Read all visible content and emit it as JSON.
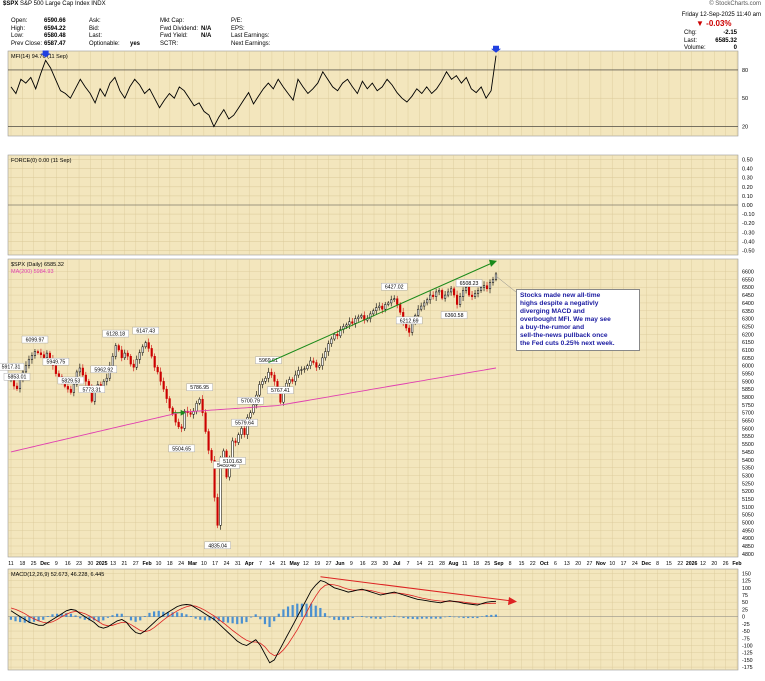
{
  "header": {
    "symbol": "$SPX",
    "name": "S&P 500 Large Cap Index",
    "exchange": "INDX",
    "credit": "© StockCharts.com",
    "date": "Friday 12-Sep-2025 11:40 am",
    "left_fields": [
      {
        "label": "Open:",
        "value": "6590.66"
      },
      {
        "label": "High:",
        "value": "6594.22"
      },
      {
        "label": "Low:",
        "value": "6580.48"
      },
      {
        "label": "Prev Close:",
        "value": "6587.47"
      }
    ],
    "mid_fields": [
      {
        "label": "Ask:",
        "value": ""
      },
      {
        "label": "Bid:",
        "value": ""
      },
      {
        "label": "Last:",
        "value": ""
      },
      {
        "label": "Optionable:",
        "value": "yes"
      }
    ],
    "mid2_fields": [
      {
        "label": "Mkt Cap:",
        "value": ""
      },
      {
        "label": "Fwd Dividend:",
        "value": "N/A"
      },
      {
        "label": "Fwd Yield:",
        "value": "N/A"
      },
      {
        "label": "SCTR:",
        "value": ""
      }
    ],
    "mid3_fields": [
      {
        "label": "P/E:",
        "value": ""
      },
      {
        "label": "EPS:",
        "value": ""
      },
      {
        "label": "Last Earnings:",
        "value": ""
      },
      {
        "label": "Next Earnings:",
        "value": ""
      }
    ],
    "change_pct": "-0.03%",
    "right_fields": [
      {
        "label": "Chg:",
        "value": "-2.15"
      },
      {
        "label": "Last:",
        "value": "6585.32"
      },
      {
        "label": "Volume:",
        "value": "0"
      }
    ],
    "down_color": "#cc0000"
  },
  "annotation": {
    "lines": [
      "Stocks made new all-time",
      "highs despite a negativly",
      "diverging MACD and",
      "overbought MFI. We may see",
      "a buy-the-rumor and",
      "sell-the-news pullback once",
      "the Fed cuts 0.25% next week."
    ],
    "color": "#1a1aa0"
  },
  "colors": {
    "panel_bg": "#f3e6bd",
    "grid": "#d9c898",
    "ma_line": "#e040b0",
    "up": "#000000",
    "down": "#cc0000",
    "trend_price": "#1a8a1a",
    "trend_macd": "#dd2222",
    "marker": "#2040e0",
    "hist": "#4a90d0"
  },
  "chart_data": [
    {
      "type": "line",
      "panel": "mfi",
      "title": "MFI(14) 94.76 (11 Sep)",
      "y_ticks": [
        20,
        50,
        80
      ],
      "ylim": [
        10,
        100
      ],
      "levels": [
        20,
        80
      ],
      "series": [
        {
          "name": "MFI(14)",
          "values": [
            62,
            55,
            70,
            66,
            72,
            60,
            76,
            90,
            82,
            70,
            58,
            55,
            50,
            60,
            70,
            62,
            55,
            45,
            60,
            52,
            66,
            72,
            58,
            50,
            62,
            70,
            64,
            55,
            60,
            50,
            40,
            48,
            55,
            50,
            62,
            58,
            50,
            42,
            45,
            36,
            32,
            20,
            30,
            38,
            28,
            32,
            40,
            48,
            56,
            44,
            52,
            60,
            66,
            60,
            70,
            62,
            55,
            48,
            70,
            62,
            55,
            60,
            66,
            78,
            70,
            62,
            58,
            66,
            70,
            62,
            55,
            68,
            60,
            66,
            58,
            62,
            70,
            64,
            56,
            50,
            46,
            52,
            60,
            55,
            62,
            55,
            60,
            68,
            78,
            70,
            74,
            66,
            72,
            60,
            56,
            62,
            50,
            58,
            95
          ]
        }
      ]
    },
    {
      "type": "line",
      "panel": "force",
      "title": "FORCE(0) 0.00 (11 Sep)",
      "y_ticks": [
        "0.50",
        "0.40",
        "0.30",
        "0.20",
        "0.10",
        "0.00",
        "-0.10",
        "-0.20",
        "-0.30",
        "-0.40",
        "-0.50"
      ],
      "ylim": [
        -0.55,
        0.55
      ],
      "series": [
        {
          "name": "FORCE(0)",
          "values": [
            0
          ]
        }
      ]
    },
    {
      "type": "candlestick",
      "panel": "price",
      "title": "$SPX (Daily) 6585.32",
      "legend": [
        "MA(200) 5984.93"
      ],
      "ylim": [
        4780,
        6680
      ],
      "y_ticks": [
        6600,
        6550,
        6500,
        6450,
        6400,
        6350,
        6300,
        6250,
        6200,
        6150,
        6100,
        6050,
        6000,
        5950,
        5900,
        5850,
        5800,
        5750,
        5700,
        5650,
        5600,
        5550,
        5500,
        5450,
        5400,
        5350,
        5300,
        5250,
        5200,
        5150,
        5100,
        5050,
        5000,
        4950,
        4900,
        4850,
        4800
      ],
      "closes": [
        5917,
        5870,
        5853,
        5910,
        5960,
        6000,
        6040,
        6065,
        6090,
        6082,
        6070,
        6050,
        6080,
        6040,
        6000,
        5949,
        5930,
        5900,
        5868,
        5850,
        5829,
        5881,
        5960,
        5985,
        5940,
        5900,
        5870,
        5773,
        5842,
        5880,
        5870,
        5900,
        5920,
        6000,
        6060,
        6128,
        6100,
        6050,
        6080,
        6060,
        6010,
        5990,
        6040,
        6083,
        6120,
        6147,
        6110,
        6060,
        5990,
        5960,
        5900,
        5850,
        5790,
        5730,
        5690,
        5640,
        5610,
        5600,
        5710,
        5700,
        5690,
        5710,
        5760,
        5786,
        5700,
        5580,
        5460,
        5396,
        5160,
        4982,
        5405,
        5456,
        5290,
        5400,
        5520,
        5510,
        5560,
        5600,
        5560,
        5670,
        5700,
        5750,
        5812,
        5880,
        5900,
        5920,
        5958,
        5940,
        5900,
        5850,
        5767,
        5842,
        5888,
        5912,
        5900,
        5940,
        5970,
        5975,
        5980,
        6000,
        6030,
        6020,
        5990,
        6000,
        6050,
        6090,
        6140,
        6170,
        6200,
        6190,
        6230,
        6250,
        6260,
        6280,
        6270,
        6300,
        6310,
        6320,
        6290,
        6300,
        6330,
        6350,
        6370,
        6380,
        6360,
        6390,
        6400,
        6420,
        6427,
        6390,
        6340,
        6280,
        6240,
        6212,
        6270,
        6320,
        6360,
        6380,
        6400,
        6420,
        6450,
        6440,
        6470,
        6480,
        6430,
        6450,
        6470,
        6490,
        6450,
        6390,
        6440,
        6480,
        6500,
        6450,
        6440,
        6460,
        6480,
        6500,
        6510,
        6490,
        6530,
        6550,
        6585
      ],
      "ma200": {
        "start": 5450,
        "end": 5984.93
      },
      "labels": [
        {
          "text": "5917.31",
          "at": 0
        },
        {
          "text": "5853.01",
          "at": 2
        },
        {
          "text": "6099.97",
          "at": 8
        },
        {
          "text": "5949.75",
          "at": 15
        },
        {
          "text": "5829.53",
          "at": 20
        },
        {
          "text": "5773.31",
          "at": 27
        },
        {
          "text": "5962.92",
          "at": 31
        },
        {
          "text": "6128.18",
          "at": 35
        },
        {
          "text": "6147.43",
          "at": 45
        },
        {
          "text": "5786.95",
          "at": 63
        },
        {
          "text": "5504.65",
          "at": 57
        },
        {
          "text": "5459.46",
          "at": 72
        },
        {
          "text": "5101.63",
          "at": 74
        },
        {
          "text": "4835.04",
          "at": 69
        },
        {
          "text": "5700.79",
          "at": 80
        },
        {
          "text": "5579.64",
          "at": 78
        },
        {
          "text": "5969.61",
          "at": 86
        },
        {
          "text": "5767.41",
          "at": 90
        },
        {
          "text": "6427.02",
          "at": 128
        },
        {
          "text": "6212.69",
          "at": 133
        },
        {
          "text": "6508.23",
          "at": 153
        },
        {
          "text": "6360.58",
          "at": 148
        }
      ]
    },
    {
      "type": "line",
      "panel": "macd",
      "title": "MACD(12,26,9) 52.673, 46.228, 6.445",
      "y_ticks": [
        150,
        125,
        100,
        75,
        50,
        25,
        0,
        -25,
        -50,
        -75,
        -100,
        -125,
        -150,
        -175
      ],
      "ylim": [
        -185,
        165
      ],
      "series": [
        {
          "name": "MACD",
          "values": [
            20,
            10,
            0,
            -10,
            -20,
            -25,
            -30,
            -30,
            -20,
            -10,
            0,
            10,
            20,
            25,
            22,
            10,
            0,
            -10,
            -20,
            -35,
            -40,
            -35,
            -25,
            -15,
            -10,
            -20,
            -40,
            -55,
            -60,
            -50,
            -35,
            -20,
            -5,
            5,
            15,
            25,
            35,
            40,
            42,
            40,
            30,
            20,
            10,
            0,
            -10,
            -25,
            -40,
            -55,
            -70,
            -85,
            -95,
            -100,
            -90,
            -80,
            -100,
            -130,
            -160,
            -150,
            -120,
            -90,
            -60,
            -30,
            0,
            30,
            60,
            90,
            110,
            125,
            120,
            110,
            100,
            95,
            90,
            85,
            88,
            92,
            95,
            90,
            85,
            80,
            75,
            78,
            82,
            85,
            80,
            75,
            70,
            65,
            60,
            58,
            55,
            52,
            50,
            48,
            52,
            55,
            52,
            50,
            46,
            44,
            42,
            40,
            45,
            50,
            52,
            53
          ]
        },
        {
          "name": "Signal",
          "values": [
            30,
            25,
            18,
            10,
            0,
            -8,
            -15,
            -20,
            -22,
            -18,
            -10,
            0,
            8,
            15,
            18,
            15,
            10,
            2,
            -8,
            -18,
            -28,
            -32,
            -30,
            -25,
            -20,
            -20,
            -28,
            -38,
            -48,
            -52,
            -48,
            -38,
            -25,
            -12,
            0,
            10,
            20,
            28,
            34,
            38,
            36,
            30,
            22,
            12,
            2,
            -10,
            -22,
            -35,
            -48,
            -60,
            -72,
            -82,
            -88,
            -88,
            -92,
            -105,
            -125,
            -135,
            -130,
            -115,
            -95,
            -70,
            -45,
            -15,
            15,
            45,
            72,
            95,
            108,
            112,
            110,
            106,
            100,
            95,
            92,
            92,
            93,
            92,
            90,
            86,
            82,
            80,
            81,
            82,
            81,
            79,
            76,
            72,
            68,
            64,
            61,
            58,
            56,
            54,
            53,
            53,
            53,
            52,
            50,
            48,
            46,
            44,
            44,
            45,
            46,
            46
          ]
        }
      ],
      "histogram": true
    }
  ],
  "x_axis": {
    "labels": [
      "11",
      "18",
      "25",
      "Dec",
      "9",
      "16",
      "23",
      "30",
      "2025",
      "13",
      "21",
      "27",
      "Feb",
      "10",
      "18",
      "24",
      "Mar",
      "10",
      "17",
      "24",
      "31",
      "Apr",
      "7",
      "14",
      "21",
      "May",
      "12",
      "19",
      "27",
      "Jun",
      "9",
      "16",
      "23",
      "30",
      "Jul",
      "7",
      "14",
      "21",
      "28",
      "Aug",
      "11",
      "18",
      "25",
      "Sep",
      "8",
      "15",
      "22",
      "Oct",
      "6",
      "13",
      "20",
      "27",
      "Nov",
      "10",
      "17",
      "24",
      "Dec",
      "8",
      "15",
      "22",
      "2026",
      "12",
      "20",
      "26",
      "Feb"
    ]
  }
}
